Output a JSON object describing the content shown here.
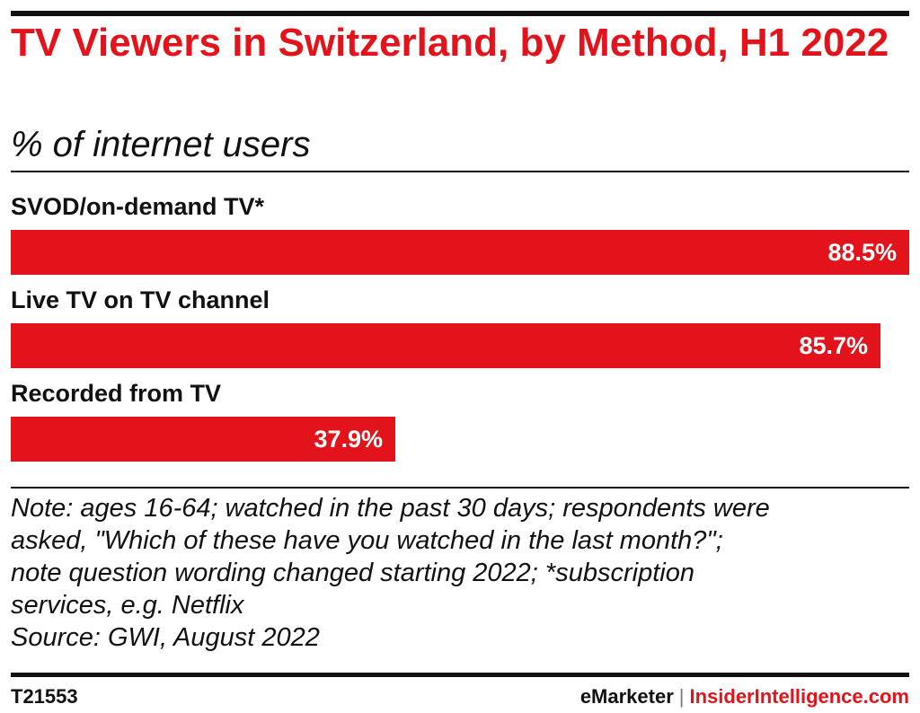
{
  "chart_data": {
    "type": "bar",
    "orientation": "horizontal",
    "title": "TV Viewers in Switzerland, by Method, H1 2022",
    "subtitle": "% of internet users",
    "categories": [
      "SVOD/on-demand TV*",
      "Live TV on TV channel",
      "Recorded from TV"
    ],
    "values": [
      88.5,
      85.7,
      37.9
    ],
    "value_labels": [
      "88.5%",
      "85.7%",
      "37.9%"
    ],
    "xlim": [
      0,
      88.5
    ],
    "grid": false,
    "bar_color": "#e3131b"
  },
  "note": {
    "lines": [
      "Note: ages 16-64; watched in the past 30 days; respondents were",
      "asked, \"Which of these have you watched in the last month?\";",
      "note question wording changed starting 2022; *subscription",
      "services, e.g. Netflix",
      "Source: GWI, August 2022"
    ]
  },
  "footer": {
    "chart_id": "T21553",
    "brand_primary": "eMarketer",
    "brand_separator": "|",
    "brand_secondary": "InsiderIntelligence.com"
  },
  "colors": {
    "accent": "#e3131b",
    "text": "#111111"
  }
}
